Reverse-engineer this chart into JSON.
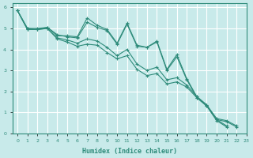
{
  "xlabel": "Humidex (Indice chaleur)",
  "bg_color": "#c8eaea",
  "grid_color": "#ffffff",
  "line_color": "#2e8b7a",
  "xlim": [
    -0.5,
    23
  ],
  "ylim": [
    0,
    6.2
  ],
  "xticks": [
    0,
    1,
    2,
    3,
    4,
    5,
    6,
    7,
    8,
    9,
    10,
    11,
    12,
    13,
    14,
    15,
    16,
    17,
    18,
    19,
    20,
    21,
    22,
    23
  ],
  "yticks": [
    0,
    1,
    2,
    3,
    4,
    5,
    6
  ],
  "x_values": [
    0,
    1,
    2,
    3,
    4,
    5,
    6,
    7,
    8,
    9,
    10,
    11,
    12,
    13,
    14,
    15,
    16,
    17,
    18,
    19,
    20,
    21,
    22,
    23
  ],
  "series": [
    [
      5.85,
      5.0,
      4.95,
      5.05,
      4.65,
      4.65,
      4.6,
      5.5,
      5.15,
      4.95,
      4.3,
      5.25,
      4.2,
      4.1,
      4.4,
      3.05,
      3.75,
      2.6,
      1.75,
      1.35,
      0.65,
      0.35,
      null,
      null
    ],
    [
      5.85,
      5.0,
      5.0,
      5.05,
      4.7,
      4.6,
      4.55,
      5.3,
      5.05,
      4.9,
      4.25,
      5.2,
      4.15,
      4.1,
      4.35,
      3.0,
      3.65,
      2.55,
      1.7,
      1.3,
      0.6,
      0.3,
      null,
      null
    ],
    [
      5.85,
      4.95,
      4.95,
      5.0,
      4.55,
      4.45,
      4.3,
      4.5,
      4.4,
      4.1,
      3.7,
      4.0,
      3.3,
      3.0,
      3.15,
      2.55,
      2.65,
      2.3,
      1.75,
      1.35,
      0.7,
      0.6,
      0.35,
      null
    ],
    [
      5.85,
      4.95,
      4.95,
      5.0,
      4.5,
      4.35,
      4.15,
      4.25,
      4.2,
      3.85,
      3.55,
      3.7,
      3.05,
      2.75,
      2.85,
      2.35,
      2.45,
      2.2,
      1.7,
      1.3,
      0.65,
      0.55,
      0.3,
      null
    ]
  ]
}
